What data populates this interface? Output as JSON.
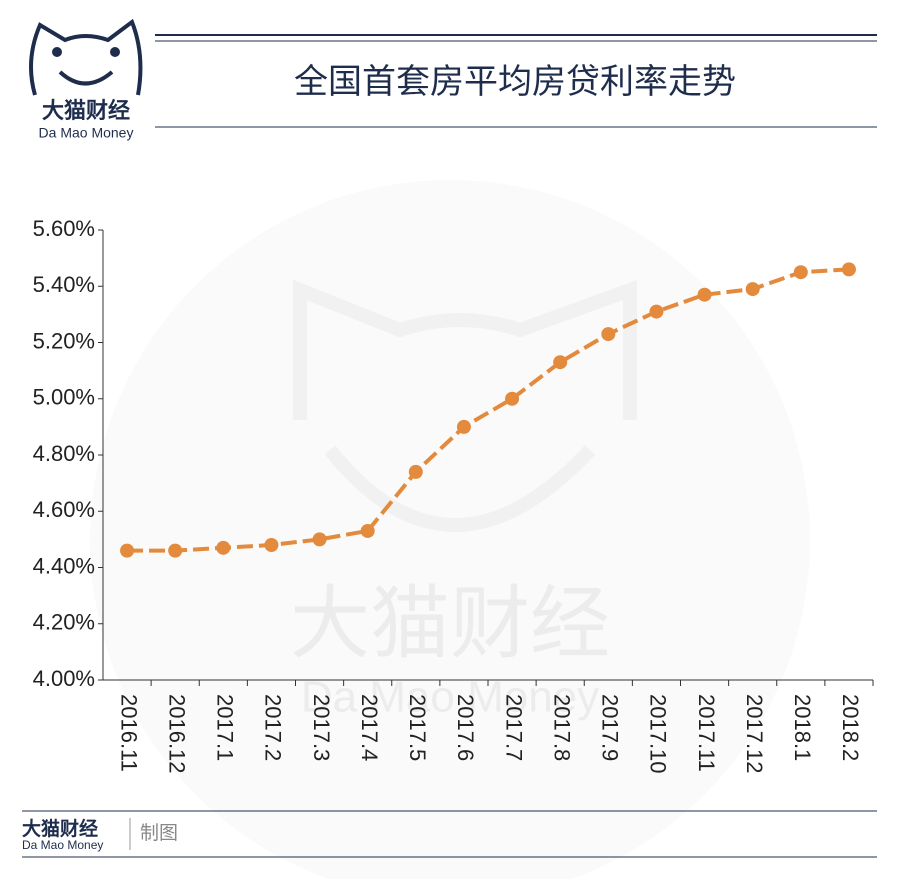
{
  "header": {
    "brand": "大猫财经",
    "brand_en": "Da Mao Money"
  },
  "chart_data": {
    "type": "line",
    "title": "全国首套房平均房贷利率走势",
    "categories": [
      "2016.11",
      "2016.12",
      "2017.1",
      "2017.2",
      "2017.3",
      "2017.4",
      "2017.5",
      "2017.6",
      "2017.7",
      "2017.8",
      "2017.9",
      "2017.10",
      "2017.11",
      "2017.12",
      "2018.1",
      "2018.2"
    ],
    "values": [
      4.46,
      4.46,
      4.47,
      4.48,
      4.5,
      4.53,
      4.74,
      4.9,
      5.0,
      5.13,
      5.23,
      5.31,
      5.37,
      5.39,
      5.45,
      5.46
    ],
    "color": "#e38a3c",
    "ylim": [
      4.0,
      5.6
    ],
    "yticks": [
      {
        "value": 4.0,
        "label": "4.00%"
      },
      {
        "value": 4.2,
        "label": "4.20%"
      },
      {
        "value": 4.4,
        "label": "4.40%"
      },
      {
        "value": 4.6,
        "label": "4.60%"
      },
      {
        "value": 4.8,
        "label": "4.80%"
      },
      {
        "value": 5.0,
        "label": "5.00%"
      },
      {
        "value": 5.2,
        "label": "5.20%"
      },
      {
        "value": 5.4,
        "label": "5.40%"
      },
      {
        "value": 5.6,
        "label": "5.60%"
      }
    ],
    "grid": false
  },
  "watermark": {
    "text": "大猫财经",
    "subtext": "Da Mao Money"
  },
  "footer": {
    "brand": "大猫财经",
    "brand_en": "Da Mao Money",
    "credit": "制图"
  }
}
